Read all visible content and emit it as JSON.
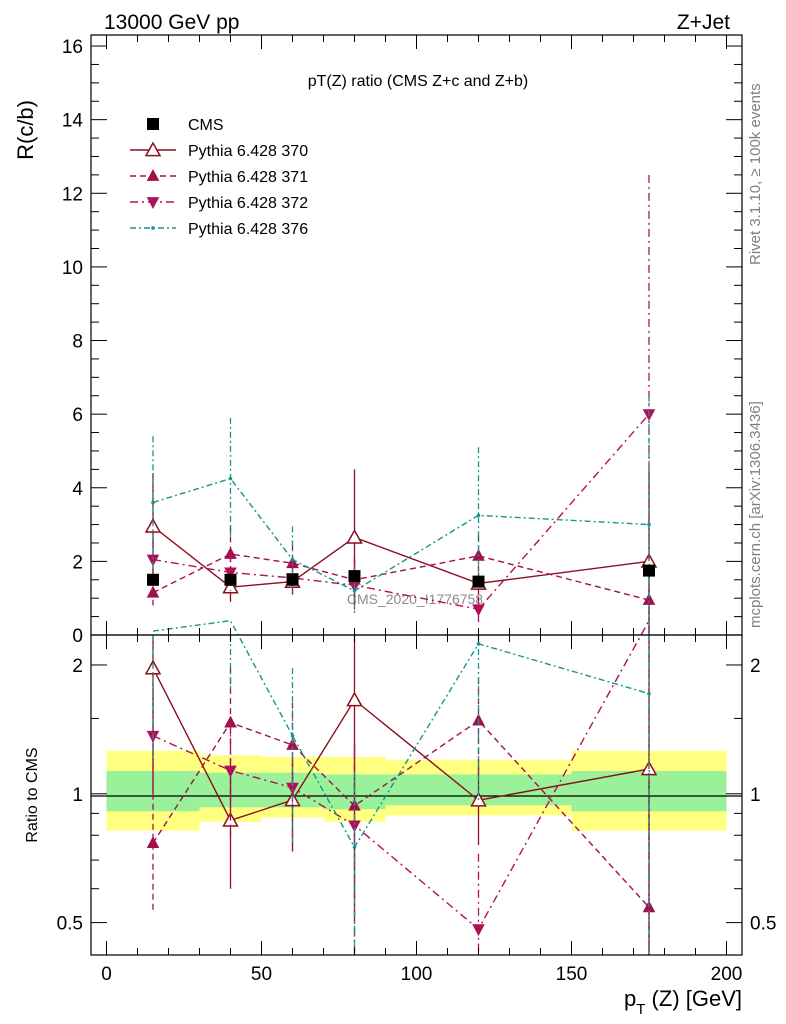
{
  "header": {
    "left": "13000 GeV pp",
    "right": "Z+Jet",
    "side_top": "Rivet 3.1.10, ≥ 100k events",
    "side_bottom": "mcplots.cern.ch [arXiv:1306.3436]"
  },
  "chart_data": {
    "type": "line",
    "title": "pT(Z) ratio (CMS  Z+c and Z+b)",
    "xlabel": "p_T (Z) [GeV]",
    "ylabel": "R(c/b)",
    "ratio_ylabel": "Ratio to CMS",
    "watermark": "CMS_2020_I1776758",
    "xlim": [
      -5,
      205
    ],
    "ylim": [
      0,
      16.3
    ],
    "ratio_ylim": [
      0.42,
      2.35
    ],
    "ratio_log": true,
    "x_ticks": [
      0,
      50,
      100,
      150,
      200
    ],
    "y_ticks": [
      0,
      2,
      4,
      6,
      8,
      10,
      12,
      14,
      16
    ],
    "ratio_ticks": [
      0.5,
      1,
      2
    ],
    "legend_position": "top-left",
    "data": {
      "name": "CMS",
      "x": [
        15,
        40,
        60,
        80,
        120,
        175
      ],
      "y": [
        1.5,
        1.5,
        1.5,
        1.6,
        1.45,
        1.75
      ],
      "bins": [
        [
          0,
          30
        ],
        [
          30,
          50
        ],
        [
          50,
          70
        ],
        [
          70,
          90
        ],
        [
          90,
          150
        ],
        [
          150,
          200
        ]
      ],
      "band_total_lo": [
        0.82,
        0.86,
        0.88,
        0.86,
        0.89,
        0.82
      ],
      "band_total_hi": [
        1.26,
        1.23,
        1.22,
        1.22,
        1.2,
        1.26
      ],
      "band_stat_lo": [
        0.91,
        0.93,
        0.93,
        0.92,
        0.94,
        0.91
      ],
      "band_stat_hi": [
        1.13,
        1.12,
        1.12,
        1.11,
        1.11,
        1.13
      ]
    },
    "series": [
      {
        "name": "Pythia 6.428 370",
        "color": "#8b0f1e",
        "marker": "triangle-open",
        "dash": "",
        "x": [
          15,
          40,
          60,
          80,
          120,
          175
        ],
        "y": [
          2.95,
          1.3,
          1.45,
          2.65,
          1.4,
          2.0
        ],
        "yerr": [
          1.45,
          0.4,
          0.35,
          1.85,
          0.3,
          2.45
        ]
      },
      {
        "name": "Pythia 6.428 371",
        "color": "#a0104c",
        "marker": "triangle-up",
        "dash": "6,4",
        "x": [
          15,
          40,
          60,
          80,
          120,
          175
        ],
        "y": [
          1.15,
          2.2,
          1.95,
          1.5,
          2.15,
          0.95
        ],
        "yerr": [
          0.35,
          0.75,
          0.5,
          0.6,
          0.55,
          0.9
        ]
      },
      {
        "name": "Pythia 6.428 372",
        "color": "#b0105a",
        "marker": "triangle-down",
        "dash": "8,4,2,4",
        "x": [
          15,
          40,
          60,
          80,
          120,
          175
        ],
        "y": [
          2.05,
          1.7,
          1.55,
          1.35,
          0.7,
          6.0
        ],
        "yerr": [
          0.55,
          0.5,
          0.45,
          0.7,
          0.35,
          6.5
        ]
      },
      {
        "name": "Pythia 6.428 376",
        "color": "#17968c",
        "marker": "dot",
        "dash": "6,3,2,3",
        "x": [
          15,
          40,
          60,
          80,
          120,
          175
        ],
        "y": [
          3.6,
          4.25,
          2.05,
          1.2,
          3.25,
          3.0
        ],
        "yerr": [
          1.8,
          1.65,
          0.9,
          0.6,
          1.85,
          3.5
        ]
      }
    ]
  }
}
